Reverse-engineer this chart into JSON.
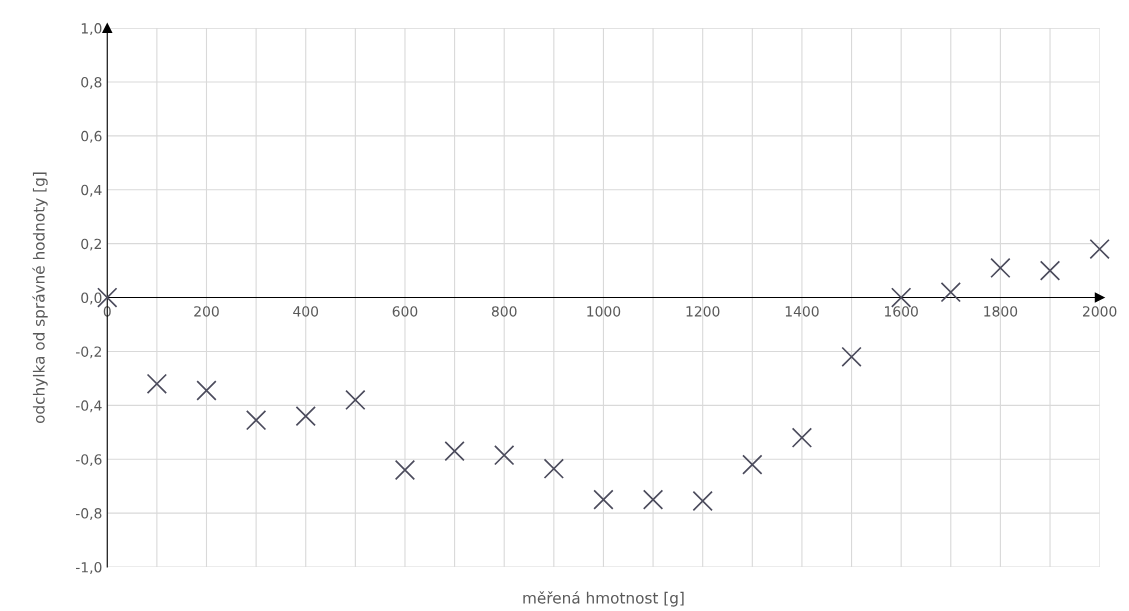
{
  "chart_data": {
    "type": "scatter",
    "xlabel": "měřená hmotnost [g]",
    "ylabel": "odchylka od správné hodnoty [g]",
    "x": [
      0,
      100,
      200,
      300,
      400,
      500,
      600,
      700,
      800,
      900,
      1000,
      1100,
      1200,
      1300,
      1400,
      1500,
      1600,
      1700,
      1800,
      1900,
      2000
    ],
    "series": [
      {
        "color": "#4b4b5c",
        "values": [
          0,
          -0.32,
          -0.345,
          -0.455,
          -0.44,
          -0.38,
          -0.64,
          -0.57,
          -0.585,
          -0.635,
          -0.75,
          -0.75,
          -0.755,
          -0.62,
          -0.52,
          -0.22,
          0,
          0.02,
          0.11,
          0.1,
          0.18
        ]
      }
    ],
    "marker": "cross",
    "grid": true,
    "legend": false,
    "xlim": [
      0,
      2000
    ],
    "ylim": [
      -1,
      1
    ],
    "xticks": [
      0,
      {
        "value": 100,
        "label": null
      },
      200,
      {
        "value": 300,
        "label": null
      },
      400,
      {
        "value": 500,
        "label": null
      },
      600,
      {
        "value": 700,
        "label": null
      },
      800,
      {
        "value": 900,
        "label": null
      },
      1000,
      {
        "value": 1100,
        "label": null
      },
      1200,
      {
        "value": 1300,
        "label": null
      },
      1400,
      {
        "value": 1500,
        "label": null
      },
      1600,
      {
        "value": 1700,
        "label": null
      },
      1800,
      {
        "value": 1900,
        "label": null
      },
      2000
    ],
    "yticks": [
      {
        "value": -1,
        "label": "-1,0"
      },
      {
        "value": -0.8,
        "label": "-0,8"
      },
      {
        "value": -0.6,
        "label": "-0,6"
      },
      {
        "value": -0.4,
        "label": "-0,4"
      },
      {
        "value": -0.2,
        "label": "-0,2"
      },
      {
        "value": 0,
        "label": "0,0"
      },
      {
        "value": 0.2,
        "label": "0,2"
      },
      {
        "value": 0.4,
        "label": "0,4"
      },
      {
        "value": 0.6,
        "label": "0,6"
      },
      {
        "value": 0.8,
        "label": "0,8"
      },
      {
        "value": 1,
        "label": "1,0"
      }
    ]
  }
}
